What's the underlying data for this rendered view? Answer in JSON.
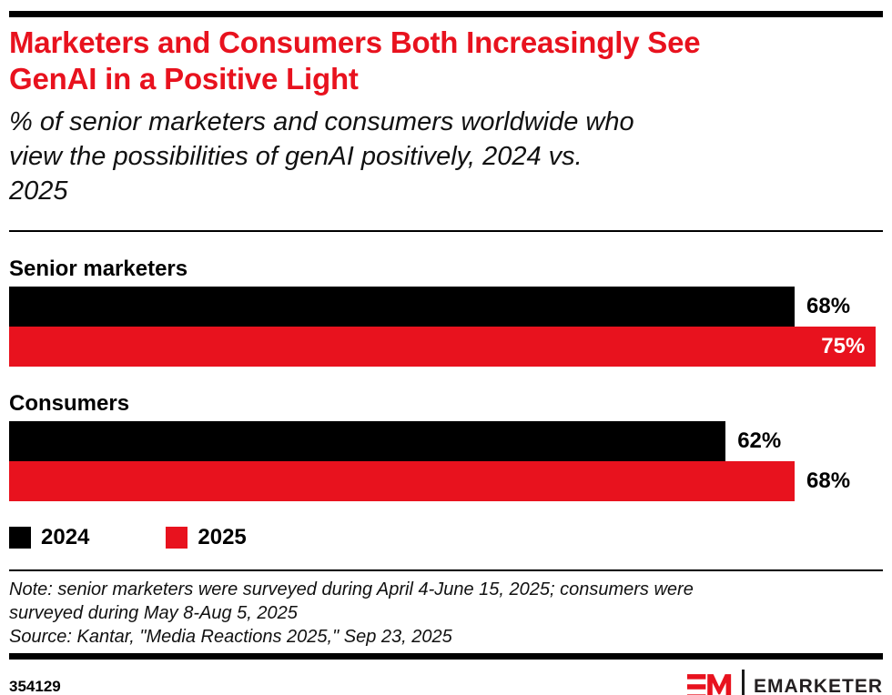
{
  "page": {
    "title_line1": "Marketers and Consumers Both Increasingly See",
    "title_line2": "GenAI in a Positive Light",
    "subtitle_lines": [
      "% of senior marketers and consumers worldwide who",
      "view the possibilities of genAI positively, 2024 vs.",
      "2025"
    ],
    "note_lines": [
      "Note: senior marketers were surveyed during April 4-June 15, 2025; consumers were",
      "surveyed during May 8-Aug 5, 2025",
      "Source: Kantar, \"Media Reactions 2025,\" Sep 23, 2025"
    ],
    "chart_id": "354129",
    "brand_name": "EMARKETER"
  },
  "colors": {
    "accent_red": "#E8121E",
    "bar_black": "#000000",
    "brand_text": "#231F20"
  },
  "chart_data": {
    "type": "bar",
    "orientation": "horizontal",
    "title": "Marketers and Consumers Both Increasingly See GenAI in a Positive Light",
    "subtitle": "% of senior marketers and consumers worldwide who view the possibilities of genAI positively, 2024 vs. 2025",
    "categories": [
      "Senior marketers",
      "Consumers"
    ],
    "series": [
      {
        "name": "2024",
        "color": "#000000",
        "values": [
          68,
          62
        ]
      },
      {
        "name": "2025",
        "color": "#E8121E",
        "values": [
          75,
          68
        ]
      }
    ],
    "value_suffix": "%",
    "xlim": [
      0,
      75
    ],
    "max_bar_width_pct": 99.2,
    "grid": false,
    "legend_position": "bottom-left"
  }
}
